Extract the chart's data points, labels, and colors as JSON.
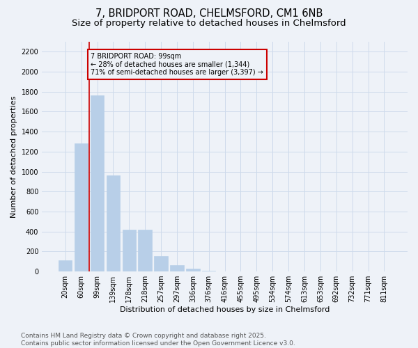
{
  "title_line1": "7, BRIDPORT ROAD, CHELMSFORD, CM1 6NB",
  "title_line2": "Size of property relative to detached houses in Chelmsford",
  "xlabel": "Distribution of detached houses by size in Chelmsford",
  "ylabel": "Number of detached properties",
  "bar_labels": [
    "20sqm",
    "60sqm",
    "99sqm",
    "139sqm",
    "178sqm",
    "218sqm",
    "257sqm",
    "297sqm",
    "336sqm",
    "376sqm",
    "416sqm",
    "455sqm",
    "495sqm",
    "534sqm",
    "574sqm",
    "613sqm",
    "653sqm",
    "692sqm",
    "732sqm",
    "771sqm",
    "811sqm"
  ],
  "bar_values": [
    110,
    1280,
    1760,
    960,
    420,
    420,
    155,
    65,
    30,
    10,
    0,
    0,
    0,
    0,
    0,
    0,
    0,
    0,
    0,
    0,
    0
  ],
  "bar_color": "#b8cfe8",
  "bar_edgecolor": "#b8cfe8",
  "grid_color": "#cddaeb",
  "background_color": "#eef2f8",
  "vline_color": "#cc0000",
  "annotation_text": "7 BRIDPORT ROAD: 99sqm\n← 28% of detached houses are smaller (1,344)\n71% of semi-detached houses are larger (3,397) →",
  "annotation_box_color": "#cc0000",
  "ylim": [
    0,
    2300
  ],
  "yticks": [
    0,
    200,
    400,
    600,
    800,
    1000,
    1200,
    1400,
    1600,
    1800,
    2000,
    2200
  ],
  "footnote": "Contains HM Land Registry data © Crown copyright and database right 2025.\nContains public sector information licensed under the Open Government Licence v3.0.",
  "title_fontsize": 10.5,
  "subtitle_fontsize": 9.5,
  "label_fontsize": 8,
  "tick_fontsize": 7,
  "footnote_fontsize": 6.5
}
